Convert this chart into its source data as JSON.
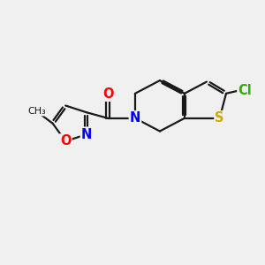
{
  "bg_color": "#f0f0f0",
  "bond_color": "#1a1a1a",
  "bond_width": 1.6,
  "atom_colors": {
    "O": "#ff0000",
    "N": "#0000ee",
    "S": "#ccaa00",
    "Cl": "#33aa00",
    "C": "#1a1a1a"
  },
  "font_size": 10.5
}
